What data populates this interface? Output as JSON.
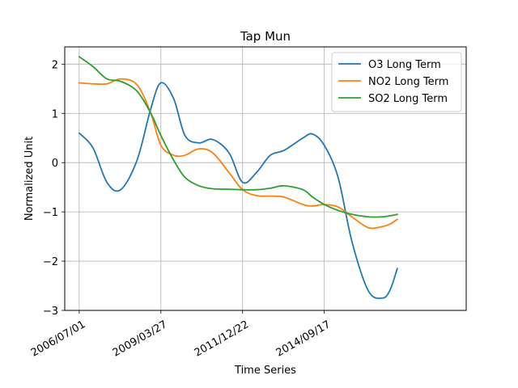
{
  "chart_data": {
    "type": "line",
    "title": "Tap Mun",
    "xlabel": "Time Series",
    "ylabel": "Normalized Unit",
    "grid": true,
    "legend_position": "top-right",
    "x_axis": {
      "type": "date",
      "range": [
        "2006-01-05",
        "2019-06-20"
      ],
      "ticks": [
        {
          "value": "2006-07-01",
          "label": "2006/07/01"
        },
        {
          "value": "2009-03-27",
          "label": "2009/03/27"
        },
        {
          "value": "2011-12-22",
          "label": "2011/12/22"
        },
        {
          "value": "2014-09-17",
          "label": "2014/09/17"
        }
      ]
    },
    "y_axis": {
      "range": [
        -3,
        2.35
      ],
      "ticks": [
        {
          "value": 2,
          "label": "2"
        },
        {
          "value": 1,
          "label": "1"
        },
        {
          "value": 0,
          "label": "0"
        },
        {
          "value": -1,
          "label": "−1"
        },
        {
          "value": -2,
          "label": "−2"
        },
        {
          "value": -3,
          "label": "−3"
        }
      ]
    },
    "series": [
      {
        "name": "O3 Long Term",
        "color": "#1f77b4",
        "x": [
          "2006-07-01",
          "2006-12-17",
          "2007-06-05",
          "2007-11-21",
          "2008-06-08",
          "2008-11-24",
          "2009-03-27",
          "2009-08-30",
          "2010-01-16",
          "2010-07-04",
          "2010-12-20",
          "2011-07-08",
          "2011-12-22",
          "2012-06-09",
          "2012-11-25",
          "2013-05-13",
          "2013-12-29",
          "2014-04-27",
          "2014-09-17",
          "2015-03-05",
          "2015-08-21",
          "2016-03-08",
          "2016-08-24",
          "2016-11-26",
          "2017-02-27"
        ],
        "values": [
          0.6,
          0.3,
          -0.4,
          -0.55,
          0.05,
          1.1,
          1.62,
          1.3,
          0.55,
          0.4,
          0.47,
          0.2,
          -0.4,
          -0.2,
          0.15,
          0.25,
          0.5,
          0.58,
          0.35,
          -0.3,
          -1.6,
          -2.6,
          -2.75,
          -2.6,
          -2.15
        ]
      },
      {
        "name": "NO2 Long Term",
        "color": "#ff7f0e",
        "x": [
          "2006-07-01",
          "2006-12-17",
          "2007-06-05",
          "2007-11-21",
          "2008-06-08",
          "2008-11-24",
          "2009-03-27",
          "2009-08-30",
          "2010-01-16",
          "2010-07-04",
          "2010-12-20",
          "2011-07-08",
          "2011-12-22",
          "2012-06-09",
          "2012-11-25",
          "2013-05-13",
          "2013-12-29",
          "2014-04-27",
          "2014-09-17",
          "2015-03-05",
          "2015-08-21",
          "2016-03-08",
          "2016-08-24",
          "2016-11-26",
          "2017-02-27"
        ],
        "values": [
          1.62,
          1.6,
          1.6,
          1.7,
          1.58,
          1.0,
          0.35,
          0.15,
          0.15,
          0.28,
          0.2,
          -0.2,
          -0.55,
          -0.67,
          -0.68,
          -0.7,
          -0.85,
          -0.88,
          -0.85,
          -0.9,
          -1.1,
          -1.32,
          -1.3,
          -1.25,
          -1.15
        ]
      },
      {
        "name": "SO2 Long Term",
        "color": "#2ca02c",
        "x": [
          "2006-07-01",
          "2006-12-17",
          "2007-06-05",
          "2007-11-21",
          "2008-06-08",
          "2008-11-24",
          "2009-03-27",
          "2009-08-30",
          "2010-01-16",
          "2010-07-04",
          "2010-12-20",
          "2011-07-08",
          "2011-12-22",
          "2012-06-09",
          "2012-11-25",
          "2013-05-13",
          "2013-12-29",
          "2014-04-27",
          "2014-09-17",
          "2015-03-05",
          "2015-08-21",
          "2016-03-08",
          "2016-08-24",
          "2016-11-26",
          "2017-02-27"
        ],
        "values": [
          2.15,
          1.95,
          1.7,
          1.65,
          1.45,
          1.0,
          0.55,
          0.05,
          -0.3,
          -0.47,
          -0.53,
          -0.54,
          -0.55,
          -0.55,
          -0.52,
          -0.47,
          -0.55,
          -0.7,
          -0.85,
          -0.97,
          -1.05,
          -1.1,
          -1.1,
          -1.08,
          -1.05
        ]
      }
    ]
  }
}
